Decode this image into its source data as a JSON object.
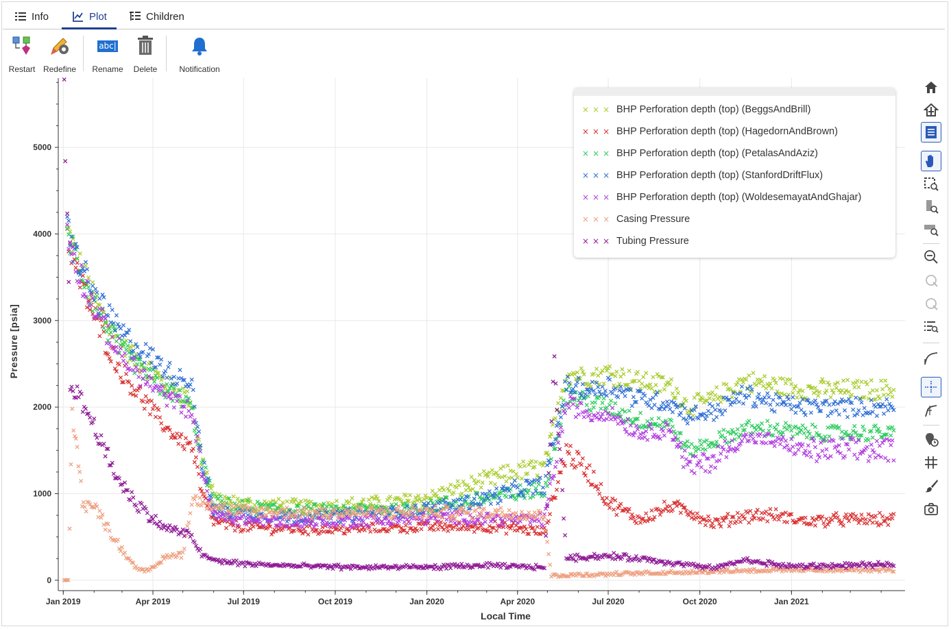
{
  "tabs": [
    {
      "label": "Info",
      "icon": "list-icon"
    },
    {
      "label": "Plot",
      "icon": "chart-line-icon",
      "active": true
    },
    {
      "label": "Children",
      "icon": "tree-icon"
    }
  ],
  "toolbar": {
    "restart": "Restart",
    "redefine": "Redefine",
    "rename": "Rename",
    "rename_icon_text": "abc|",
    "delete": "Delete",
    "notification": "Notification"
  },
  "modebar": [
    "home-icon",
    "reset-axes-icon",
    "legend-toggle-icon",
    "pan-icon",
    "zoom-box-icon",
    "zoom-y-icon",
    "zoom-x-icon",
    "zoom-out-icon",
    "undo-icon",
    "redo-icon",
    "zoom-list-icon",
    "curve-icon",
    "crosshair-icon",
    "cursor-icon",
    "clock-marker-icon",
    "grid-icon",
    "brush-icon",
    "camera-icon"
  ],
  "chart_data": {
    "type": "scatter",
    "xlabel": "Local Time",
    "ylabel": "Pressure [psia]",
    "x_range": [
      "2018-12-27",
      "2021-04-25"
    ],
    "ylim": [
      -120,
      5800
    ],
    "x_ticks": [
      {
        "date": "2019-01-01",
        "label": "Jan 2019"
      },
      {
        "date": "2019-04-01",
        "label": "Apr 2019"
      },
      {
        "date": "2019-07-01",
        "label": "Jul 2019"
      },
      {
        "date": "2019-10-01",
        "label": "Oct 2019"
      },
      {
        "date": "2020-01-01",
        "label": "Jan 2020"
      },
      {
        "date": "2020-04-01",
        "label": "Apr 2020"
      },
      {
        "date": "2020-07-01",
        "label": "Jul 2020"
      },
      {
        "date": "2020-10-01",
        "label": "Oct 2020"
      },
      {
        "date": "2021-01-01",
        "label": "Jan 2021"
      }
    ],
    "y_ticks": [
      0,
      1000,
      2000,
      3000,
      4000,
      5000
    ],
    "grid": true,
    "legend_position": "top-right",
    "series": [
      {
        "name": "BHP Perforation depth (top) (BeggsAndBrill)",
        "color": "#a8cc2e",
        "points": [
          [
            "2019-01-05",
            4050
          ],
          [
            "2019-01-15",
            3700
          ],
          [
            "2019-02-01",
            3250
          ],
          [
            "2019-02-15",
            2950
          ],
          [
            "2019-03-01",
            2700
          ],
          [
            "2019-03-15",
            2550
          ],
          [
            "2019-04-01",
            2400
          ],
          [
            "2019-04-15",
            2250
          ],
          [
            "2019-05-01",
            2150
          ],
          [
            "2019-05-10",
            2050
          ],
          [
            "2019-05-20",
            1400
          ],
          [
            "2019-06-01",
            950
          ],
          [
            "2019-06-15",
            900
          ],
          [
            "2019-07-01",
            880
          ],
          [
            "2019-08-01",
            860
          ],
          [
            "2019-09-01",
            850
          ],
          [
            "2019-10-01",
            860
          ],
          [
            "2019-11-01",
            880
          ],
          [
            "2019-12-01",
            900
          ],
          [
            "2020-01-01",
            950
          ],
          [
            "2020-02-01",
            1050
          ],
          [
            "2020-03-01",
            1150
          ],
          [
            "2020-04-01",
            1250
          ],
          [
            "2020-04-28",
            1300
          ],
          [
            "2020-05-20",
            2400
          ],
          [
            "2020-06-15",
            2350
          ],
          [
            "2020-07-01",
            2400
          ],
          [
            "2020-08-01",
            2300
          ],
          [
            "2020-09-01",
            2250
          ],
          [
            "2020-09-20",
            2000
          ],
          [
            "2020-10-15",
            2100
          ],
          [
            "2020-11-15",
            2300
          ],
          [
            "2020-12-15",
            2250
          ],
          [
            "2021-01-15",
            2200
          ],
          [
            "2021-02-15",
            2200
          ],
          [
            "2021-04-15",
            2200
          ]
        ]
      },
      {
        "name": "BHP Perforation depth (top) (HagedornAndBrown)",
        "color": "#d93030",
        "points": [
          [
            "2019-01-05",
            4000
          ],
          [
            "2019-01-15",
            3550
          ],
          [
            "2019-02-01",
            3050
          ],
          [
            "2019-02-15",
            2700
          ],
          [
            "2019-03-01",
            2400
          ],
          [
            "2019-03-15",
            2200
          ],
          [
            "2019-04-01",
            1950
          ],
          [
            "2019-04-15",
            1750
          ],
          [
            "2019-05-01",
            1600
          ],
          [
            "2019-05-10",
            1550
          ],
          [
            "2019-05-20",
            1000
          ],
          [
            "2019-06-01",
            680
          ],
          [
            "2019-06-15",
            640
          ],
          [
            "2019-07-01",
            620
          ],
          [
            "2019-08-01",
            600
          ],
          [
            "2019-09-01",
            590
          ],
          [
            "2019-10-01",
            590
          ],
          [
            "2019-11-01",
            600
          ],
          [
            "2019-12-01",
            610
          ],
          [
            "2020-01-01",
            620
          ],
          [
            "2020-02-01",
            620
          ],
          [
            "2020-03-01",
            620
          ],
          [
            "2020-04-01",
            600
          ],
          [
            "2020-04-28",
            550
          ],
          [
            "2020-05-20",
            1500
          ],
          [
            "2020-06-15",
            1200
          ],
          [
            "2020-07-01",
            900
          ],
          [
            "2020-08-01",
            700
          ],
          [
            "2020-09-01",
            850
          ],
          [
            "2020-09-20",
            800
          ],
          [
            "2020-10-15",
            650
          ],
          [
            "2020-11-15",
            750
          ],
          [
            "2020-12-15",
            750
          ],
          [
            "2021-01-15",
            680
          ],
          [
            "2021-02-15",
            700
          ],
          [
            "2021-04-15",
            700
          ]
        ]
      },
      {
        "name": "BHP Perforation depth (top) (PetalasAndAziz)",
        "color": "#2ecc5e",
        "points": [
          [
            "2019-01-05",
            4040
          ],
          [
            "2019-01-15",
            3680
          ],
          [
            "2019-02-01",
            3200
          ],
          [
            "2019-02-15",
            2900
          ],
          [
            "2019-03-01",
            2650
          ],
          [
            "2019-03-15",
            2480
          ],
          [
            "2019-04-01",
            2320
          ],
          [
            "2019-04-15",
            2180
          ],
          [
            "2019-05-01",
            2080
          ],
          [
            "2019-05-10",
            2000
          ],
          [
            "2019-05-20",
            1350
          ],
          [
            "2019-06-01",
            900
          ],
          [
            "2019-06-15",
            860
          ],
          [
            "2019-07-01",
            840
          ],
          [
            "2019-08-01",
            820
          ],
          [
            "2019-09-01",
            800
          ],
          [
            "2019-10-01",
            800
          ],
          [
            "2019-11-01",
            810
          ],
          [
            "2019-12-01",
            820
          ],
          [
            "2020-01-01",
            850
          ],
          [
            "2020-02-01",
            900
          ],
          [
            "2020-03-01",
            950
          ],
          [
            "2020-04-01",
            1000
          ],
          [
            "2020-04-28",
            1050
          ],
          [
            "2020-05-20",
            2150
          ],
          [
            "2020-06-15",
            2050
          ],
          [
            "2020-07-01",
            2000
          ],
          [
            "2020-08-01",
            1850
          ],
          [
            "2020-09-01",
            1800
          ],
          [
            "2020-09-20",
            1500
          ],
          [
            "2020-10-15",
            1600
          ],
          [
            "2020-11-15",
            1750
          ],
          [
            "2020-12-15",
            1750
          ],
          [
            "2021-01-15",
            1700
          ],
          [
            "2021-02-15",
            1700
          ],
          [
            "2021-04-15",
            1700
          ]
        ]
      },
      {
        "name": "BHP Perforation depth (top) (StanfordDriftFlux)",
        "color": "#2f6fd6",
        "points": [
          [
            "2019-01-05",
            4060
          ],
          [
            "2019-01-15",
            3720
          ],
          [
            "2019-02-01",
            3300
          ],
          [
            "2019-02-15",
            3050
          ],
          [
            "2019-03-01",
            2850
          ],
          [
            "2019-03-15",
            2700
          ],
          [
            "2019-04-01",
            2550
          ],
          [
            "2019-04-15",
            2420
          ],
          [
            "2019-05-01",
            2330
          ],
          [
            "2019-05-10",
            2300
          ],
          [
            "2019-05-20",
            1380
          ],
          [
            "2019-06-01",
            820
          ],
          [
            "2019-06-15",
            780
          ],
          [
            "2019-07-01",
            760
          ],
          [
            "2019-08-01",
            740
          ],
          [
            "2019-09-01",
            730
          ],
          [
            "2019-10-01",
            740
          ],
          [
            "2019-11-01",
            760
          ],
          [
            "2019-12-01",
            780
          ],
          [
            "2020-01-01",
            820
          ],
          [
            "2020-02-01",
            880
          ],
          [
            "2020-03-01",
            950
          ],
          [
            "2020-04-01",
            1050
          ],
          [
            "2020-04-28",
            1100
          ],
          [
            "2020-05-20",
            2250
          ],
          [
            "2020-06-15",
            2200
          ],
          [
            "2020-07-01",
            2250
          ],
          [
            "2020-08-01",
            2100
          ],
          [
            "2020-09-01",
            2050
          ],
          [
            "2020-09-20",
            1900
          ],
          [
            "2020-10-15",
            1950
          ],
          [
            "2020-11-15",
            2150
          ],
          [
            "2020-12-15",
            2050
          ],
          [
            "2021-01-15",
            2000
          ],
          [
            "2021-02-15",
            2000
          ],
          [
            "2021-04-15",
            2000
          ]
        ]
      },
      {
        "name": "BHP Perforation depth (top) (WoldesemayatAndGhajar)",
        "color": "#b13ee0",
        "points": [
          [
            "2019-01-05",
            4020
          ],
          [
            "2019-01-15",
            3620
          ],
          [
            "2019-02-01",
            3150
          ],
          [
            "2019-02-15",
            2850
          ],
          [
            "2019-03-01",
            2600
          ],
          [
            "2019-03-15",
            2420
          ],
          [
            "2019-04-01",
            2250
          ],
          [
            "2019-04-15",
            2100
          ],
          [
            "2019-05-01",
            2020
          ],
          [
            "2019-05-10",
            1950
          ],
          [
            "2019-05-20",
            1300
          ],
          [
            "2019-06-01",
            750
          ],
          [
            "2019-06-15",
            720
          ],
          [
            "2019-07-01",
            700
          ],
          [
            "2019-08-01",
            680
          ],
          [
            "2019-09-01",
            670
          ],
          [
            "2019-10-01",
            680
          ],
          [
            "2019-11-01",
            690
          ],
          [
            "2019-12-01",
            700
          ],
          [
            "2020-01-01",
            720
          ],
          [
            "2020-02-01",
            720
          ],
          [
            "2020-03-01",
            720
          ],
          [
            "2020-04-01",
            700
          ],
          [
            "2020-04-28",
            700
          ],
          [
            "2020-05-20",
            2050
          ],
          [
            "2020-06-15",
            1900
          ],
          [
            "2020-07-01",
            1950
          ],
          [
            "2020-08-01",
            1700
          ],
          [
            "2020-09-01",
            1750
          ],
          [
            "2020-09-20",
            1300
          ],
          [
            "2020-10-15",
            1400
          ],
          [
            "2020-11-15",
            1650
          ],
          [
            "2020-12-15",
            1600
          ],
          [
            "2021-01-15",
            1500
          ],
          [
            "2021-02-15",
            1500
          ],
          [
            "2021-04-15",
            1500
          ]
        ]
      },
      {
        "name": "Casing Pressure",
        "color": "#eea080",
        "points": [
          [
            "2019-01-02",
            0
          ],
          [
            "2019-01-06",
            0
          ],
          [
            "2019-01-10",
            1900
          ],
          [
            "2019-01-15",
            1600
          ],
          [
            "2019-01-20",
            900
          ],
          [
            "2019-02-01",
            850
          ],
          [
            "2019-02-15",
            600
          ],
          [
            "2019-03-01",
            350
          ],
          [
            "2019-03-15",
            150
          ],
          [
            "2019-03-25",
            100
          ],
          [
            "2019-04-01",
            150
          ],
          [
            "2019-04-15",
            280
          ],
          [
            "2019-05-01",
            300
          ],
          [
            "2019-05-10",
            920
          ],
          [
            "2019-05-25",
            920
          ],
          [
            "2019-06-15",
            800
          ],
          [
            "2019-08-01",
            780
          ],
          [
            "2019-10-01",
            780
          ],
          [
            "2019-12-01",
            780
          ],
          [
            "2020-02-01",
            780
          ],
          [
            "2020-04-01",
            780
          ],
          [
            "2020-04-28",
            750
          ],
          [
            "2020-05-05",
            50
          ],
          [
            "2020-05-20",
            60
          ],
          [
            "2020-07-01",
            70
          ],
          [
            "2020-09-01",
            90
          ],
          [
            "2020-11-01",
            110
          ],
          [
            "2021-01-01",
            120
          ],
          [
            "2021-04-15",
            120
          ]
        ]
      },
      {
        "name": "Tubing Pressure",
        "color": "#8e1a96",
        "points": [
          [
            "2019-01-02",
            5700
          ],
          [
            "2019-01-03",
            4850
          ],
          [
            "2019-01-05",
            4300
          ],
          [
            "2019-01-08",
            2300
          ],
          [
            "2019-01-15",
            2150
          ],
          [
            "2019-02-01",
            1800
          ],
          [
            "2019-02-15",
            1400
          ],
          [
            "2019-03-01",
            1100
          ],
          [
            "2019-03-15",
            900
          ],
          [
            "2019-04-01",
            700
          ],
          [
            "2019-04-15",
            600
          ],
          [
            "2019-05-01",
            550
          ],
          [
            "2019-05-10",
            500
          ],
          [
            "2019-05-20",
            300
          ],
          [
            "2019-06-01",
            230
          ],
          [
            "2019-07-01",
            190
          ],
          [
            "2019-09-01",
            160
          ],
          [
            "2019-11-01",
            150
          ],
          [
            "2020-01-01",
            150
          ],
          [
            "2020-03-01",
            170
          ],
          [
            "2020-04-28",
            150
          ],
          [
            "2020-05-08",
            2550
          ],
          [
            "2020-05-20",
            260
          ],
          [
            "2020-07-01",
            280
          ],
          [
            "2020-08-01",
            250
          ],
          [
            "2020-09-15",
            180
          ],
          [
            "2020-10-15",
            140
          ],
          [
            "2020-11-15",
            230
          ],
          [
            "2021-01-01",
            160
          ],
          [
            "2021-04-15",
            180
          ]
        ]
      }
    ]
  }
}
